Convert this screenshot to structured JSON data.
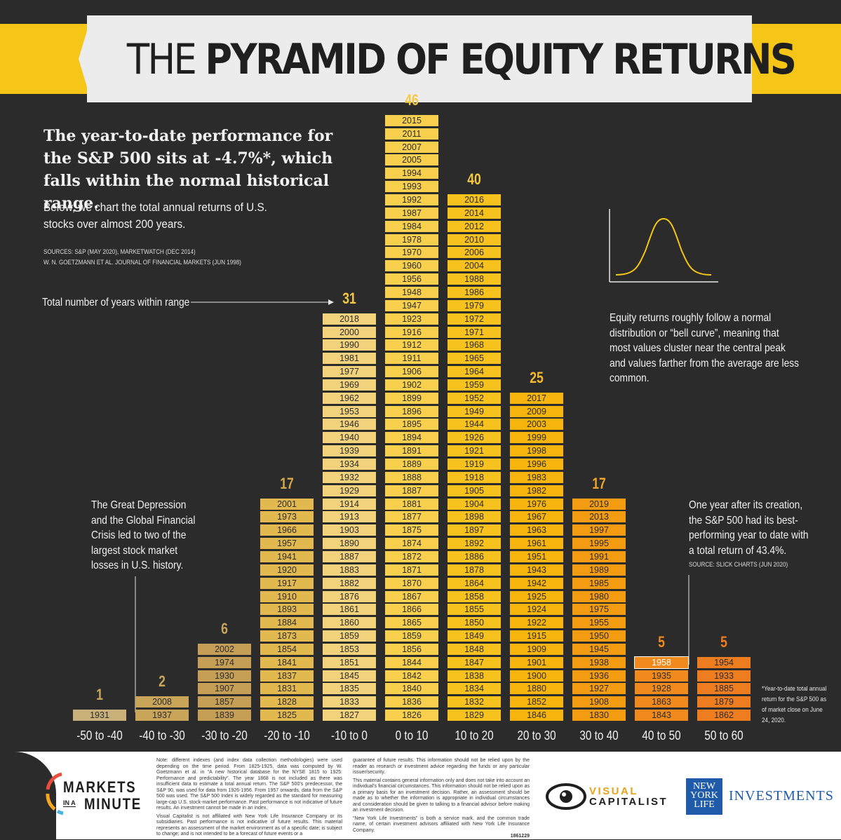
{
  "title": {
    "light": "THE",
    "bold": "PYRAMID OF EQUITY RETURNS"
  },
  "intro": {
    "headline": "The year-to-date performance for the S&P 500 sits at -4.7%*, which falls within the normal historical range.",
    "subline": "Below, we chart the total annual returns of U.S. stocks over almost 200 years.",
    "source_1": "SOURCES: S&P (MAY 2020), MARKETWATCH (DEC 2014)",
    "source_2": "W. N. GOETZMANN ET AL. JOURNAL OF FINANCIAL MARKETS (JUN 1998)"
  },
  "annotations": {
    "total_years": "Total number of years within range",
    "bell_curve": "Equity returns roughly follow a normal distribution or “bell curve”, meaning that most values cluster near the central peak and values farther from the average are less common.",
    "depression": "The Great Depression and the Global Financial Crisis led to two of the largest stock market losses in U.S. history.",
    "best_year": "One year after its creation, the S&P 500 had its best-performing year to date with a total return of 43.4%.",
    "best_year_source": "SOURCE: SLICK CHARTS (JUN 2020)",
    "ytd_note": "*Year-to-date total annual return for the S&P 500 as of market close on June 24, 2020."
  },
  "chart_data": {
    "type": "bar",
    "xlabel": "",
    "ylabel": "",
    "categories": [
      "-50 to -40",
      "-40 to -30",
      "-30 to -20",
      "-20 to -10",
      "-10 to 0",
      "0 to 10",
      "10 to 20",
      "20 to 30",
      "30 to 40",
      "40 to 50",
      "50 to 60"
    ],
    "values": [
      1,
      2,
      6,
      17,
      31,
      46,
      40,
      25,
      17,
      5,
      5
    ],
    "years": [
      [
        "1931"
      ],
      [
        "2008",
        "1937"
      ],
      [
        "2002",
        "1974",
        "1930",
        "1907",
        "1857",
        "1839"
      ],
      [
        "2001",
        "1973",
        "1966",
        "1957",
        "1941",
        "1920",
        "1917",
        "1910",
        "1893",
        "1884",
        "1873",
        "1854",
        "1841",
        "1837",
        "1831",
        "1828",
        "1825"
      ],
      [
        "2018",
        "2000",
        "1990",
        "1981",
        "1977",
        "1969",
        "1962",
        "1953",
        "1946",
        "1940",
        "1939",
        "1934",
        "1932",
        "1929",
        "1914",
        "1913",
        "1903",
        "1890",
        "1887",
        "1883",
        "1882",
        "1876",
        "1861",
        "1860",
        "1859",
        "1853",
        "1851",
        "1845",
        "1835",
        "1833",
        "1827"
      ],
      [
        "2015",
        "2011",
        "2007",
        "2005",
        "1994",
        "1993",
        "1992",
        "1987",
        "1984",
        "1978",
        "1970",
        "1960",
        "1956",
        "1948",
        "1947",
        "1923",
        "1916",
        "1912",
        "1911",
        "1906",
        "1902",
        "1899",
        "1896",
        "1895",
        "1894",
        "1891",
        "1889",
        "1888",
        "1887",
        "1881",
        "1877",
        "1875",
        "1874",
        "1872",
        "1871",
        "1870",
        "1867",
        "1866",
        "1865",
        "1859",
        "1856",
        "1844",
        "1842",
        "1840",
        "1836",
        "1826"
      ],
      [
        "2016",
        "2014",
        "2012",
        "2010",
        "2006",
        "2004",
        "1988",
        "1986",
        "1979",
        "1972",
        "1971",
        "1968",
        "1965",
        "1964",
        "1959",
        "1952",
        "1949",
        "1944",
        "1926",
        "1921",
        "1919",
        "1918",
        "1905",
        "1904",
        "1898",
        "1897",
        "1892",
        "1886",
        "1878",
        "1864",
        "1858",
        "1855",
        "1850",
        "1849",
        "1848",
        "1847",
        "1838",
        "1834",
        "1832",
        "1829"
      ],
      [
        "2017",
        "2009",
        "2003",
        "1999",
        "1998",
        "1996",
        "1983",
        "1982",
        "1976",
        "1967",
        "1963",
        "1961",
        "1951",
        "1943",
        "1942",
        "1925",
        "1924",
        "1922",
        "1915",
        "1909",
        "1901",
        "1900",
        "1880",
        "1852",
        "1846"
      ],
      [
        "2019",
        "2013",
        "1997",
        "1995",
        "1991",
        "1989",
        "1985",
        "1980",
        "1975",
        "1955",
        "1950",
        "1945",
        "1938",
        "1936",
        "1927",
        "1908",
        "1830"
      ],
      [
        "1958",
        "1935",
        "1928",
        "1863",
        "1843"
      ],
      [
        "1954",
        "1933",
        "1885",
        "1879",
        "1862"
      ]
    ],
    "colors": [
      "#c9b07a",
      "#c9a55a",
      "#c69f56",
      "#e2b94f",
      "#f2d27a",
      "#f8d04d",
      "#f7c21e",
      "#f6b40d",
      "#f39c12",
      "#f08a1c",
      "#ee7d1f"
    ],
    "count_colors": [
      "#c9a55a",
      "#c9a55a",
      "#c9a55a",
      "#d7a848",
      "#f5c842",
      "#f5c842",
      "#f5c842",
      "#f5b82e",
      "#f3a32a",
      "#f08a1c",
      "#ee7d1f"
    ],
    "highlight_year": "1958"
  },
  "footer": {
    "brand_line1": "MARKETS",
    "brand_in_a": "IN A",
    "brand_line2": "MINUTE",
    "note_1": "Note: different indexes (and index data collection methodologies) were used depending on the time period. From 1825-1925, data was computed by W. Goetzmann et al. in “A new historical database for the NYSE 1815 to 1925: Performance and predictability”. The year 1868 is not included as there was insufficient data to estimate a total annual return. The S&P 500’s predecessor, the S&P 90, was used for data from 1926-1956. From 1957 onwards, data from the S&P 500 was used. The S&P 500 Index is widely regarded as the standard for measuring large-cap U.S. stock-market performance. Past performance is not indicative of future results. An investment cannot be made in an index.",
    "note_2": "Visual Capitalist is not affiliated with New York Life Insurance Company or its subsidiaries. Past performance is not indicative of future results. This material represents an assessment of the market environment as of a specific date; is subject to change; and is not intended to be a forecast of future events or a",
    "note_3": "guarantee of future results. This information should not be relied upon by the reader as research or investment advice regarding the funds or any particular issuer/security.",
    "note_4": "This material contains general information only and does not take into account an individual’s financial circumstances. This information should not be relied upon as a primary basis for an investment decision. Rather, an assessment should be made as to whether the information is appropriate in individual circumstances and consideration should be given to talking to a financial advisor before making an investment decision.",
    "note_5": "“New York Life Investments” is both a service mark, and the common trade name, of certain investment advisors affiliated with New York Life Insurance Company.",
    "doc_number": "1861229",
    "vc_line1": "VISUAL",
    "vc_line2": "CAPITALIST",
    "nyl_line1": "NEW",
    "nyl_line2": "YORK",
    "nyl_line3": "LIFE",
    "nyl_investments": "INVESTMENTS"
  }
}
